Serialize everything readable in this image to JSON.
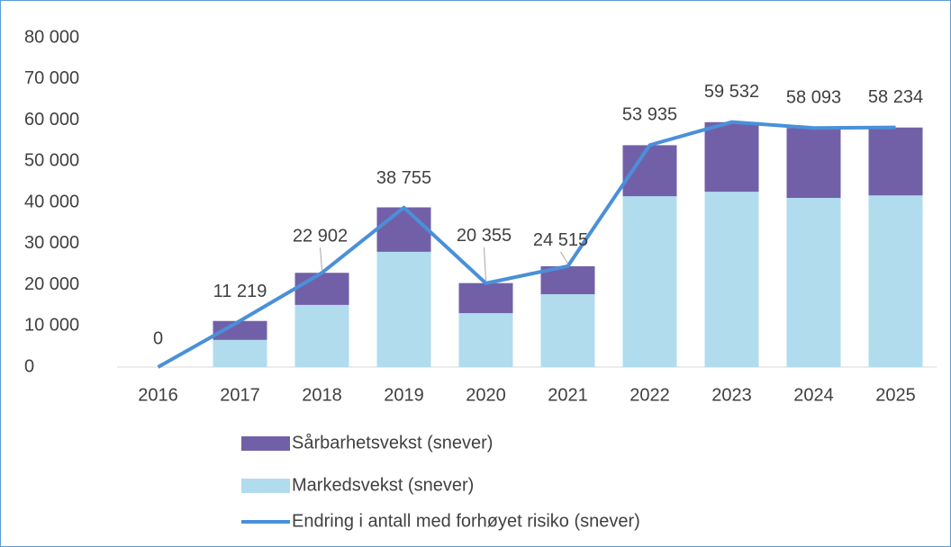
{
  "chart_data": {
    "type": "bar-line",
    "categories": [
      "2016",
      "2017",
      "2018",
      "2019",
      "2020",
      "2021",
      "2022",
      "2023",
      "2024",
      "2025"
    ],
    "series": [
      {
        "name": "Markedsvekst (snever)",
        "color": "#b0dcee",
        "kind": "bar",
        "values": [
          0,
          6600,
          15100,
          28000,
          13100,
          17700,
          41500,
          42600,
          41100,
          41700
        ]
      },
      {
        "name": "Sårbarhetsvekst (snever)",
        "color": "#7160a8",
        "kind": "bar",
        "values": [
          0,
          4600,
          7800,
          10800,
          7300,
          6800,
          12400,
          16900,
          17000,
          16500
        ]
      },
      {
        "name": "Endring i antall med forhøyet risiko (snever)",
        "color": "#4a90d9",
        "kind": "line",
        "values": [
          0,
          11219,
          22902,
          38755,
          20355,
          24515,
          53935,
          59532,
          58093,
          58234
        ],
        "value_labels": [
          "0",
          "11 219",
          "22 902",
          "38 755",
          "20 355",
          "24 515",
          "53 935",
          "59 532",
          "58 093",
          "58 234"
        ]
      }
    ],
    "ylim": [
      0,
      80000
    ],
    "yticks": [
      {
        "value": 0,
        "label": "0"
      },
      {
        "value": 10000,
        "label": "10 000"
      },
      {
        "value": 20000,
        "label": "20 000"
      },
      {
        "value": 30000,
        "label": "30 000"
      },
      {
        "value": 40000,
        "label": "40 000"
      },
      {
        "value": 50000,
        "label": "50 000"
      },
      {
        "value": 60000,
        "label": "60 000"
      },
      {
        "value": 70000,
        "label": "70 000"
      },
      {
        "value": 80000,
        "label": "80 000"
      }
    ],
    "grid": false
  }
}
